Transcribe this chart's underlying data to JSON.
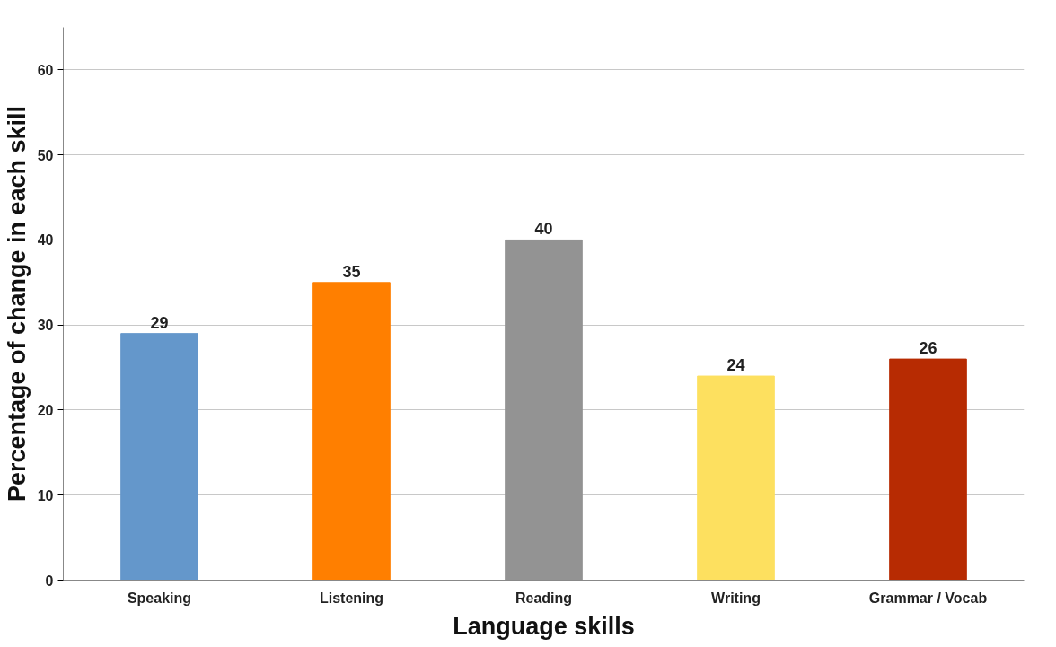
{
  "chart_data": {
    "type": "bar",
    "xlabel": "Language skills",
    "ylabel": "Percentage of change in each skill",
    "categories": [
      "Speaking",
      "Listening",
      "Reading",
      "Writing",
      "Grammar / Vocab"
    ],
    "values": [
      29,
      35,
      40,
      24,
      26
    ],
    "colors": [
      "#6497cb",
      "#ff7f00",
      "#939393",
      "#fde05f",
      "#b72b02"
    ],
    "ylim": [
      0,
      65
    ],
    "yticks": [
      0,
      10,
      20,
      30,
      40,
      50,
      60
    ],
    "grid": "y",
    "data_labels": true
  }
}
